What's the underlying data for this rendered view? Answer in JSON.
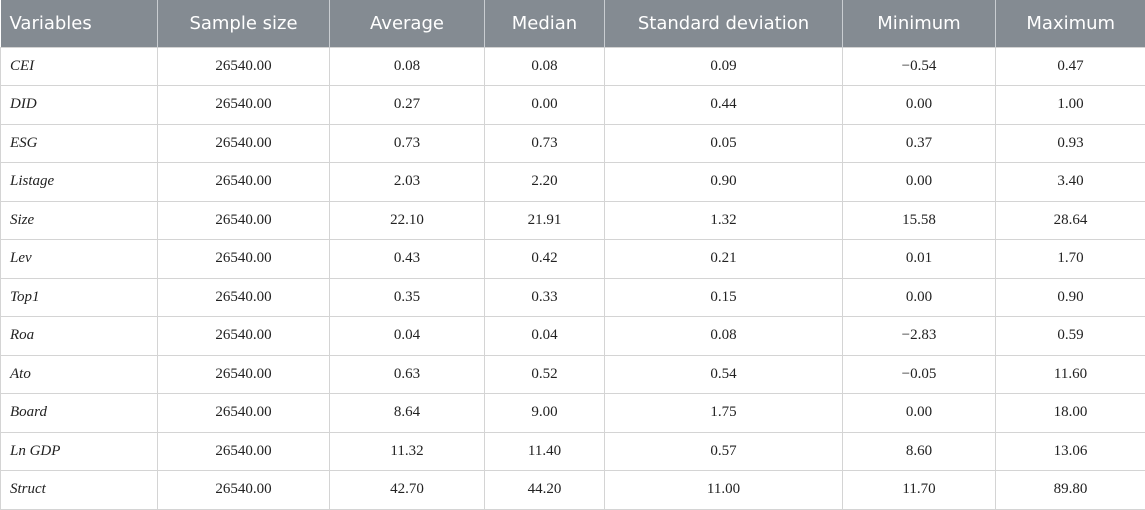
{
  "table": {
    "headers": [
      "Variables",
      "Sample size",
      "Average",
      "Median",
      "Standard deviation",
      "Minimum",
      "Maximum"
    ],
    "rows": [
      [
        "CEI",
        "26540.00",
        "0.08",
        "0.08",
        "0.09",
        "−0.54",
        "0.47"
      ],
      [
        "DID",
        "26540.00",
        "0.27",
        "0.00",
        "0.44",
        "0.00",
        "1.00"
      ],
      [
        "ESG",
        "26540.00",
        "0.73",
        "0.73",
        "0.05",
        "0.37",
        "0.93"
      ],
      [
        "Listage",
        "26540.00",
        "2.03",
        "2.20",
        "0.90",
        "0.00",
        "3.40"
      ],
      [
        "Size",
        "26540.00",
        "22.10",
        "21.91",
        "1.32",
        "15.58",
        "28.64"
      ],
      [
        "Lev",
        "26540.00",
        "0.43",
        "0.42",
        "0.21",
        "0.01",
        "1.70"
      ],
      [
        "Top1",
        "26540.00",
        "0.35",
        "0.33",
        "0.15",
        "0.00",
        "0.90"
      ],
      [
        "Roa",
        "26540.00",
        "0.04",
        "0.04",
        "0.08",
        "−2.83",
        "0.59"
      ],
      [
        "Ato",
        "26540.00",
        "0.63",
        "0.52",
        "0.54",
        "−0.05",
        "11.60"
      ],
      [
        "Board",
        "26540.00",
        "8.64",
        "9.00",
        "1.75",
        "0.00",
        "18.00"
      ],
      [
        "Ln GDP",
        "26540.00",
        "11.32",
        "11.40",
        "0.57",
        "8.60",
        "13.06"
      ],
      [
        "Struct",
        "26540.00",
        "42.70",
        "44.20",
        "11.00",
        "11.70",
        "89.80"
      ]
    ]
  },
  "colors": {
    "header_bg": "#848b92",
    "header_text": "#ffffff",
    "grid": "#d4d4d4"
  }
}
